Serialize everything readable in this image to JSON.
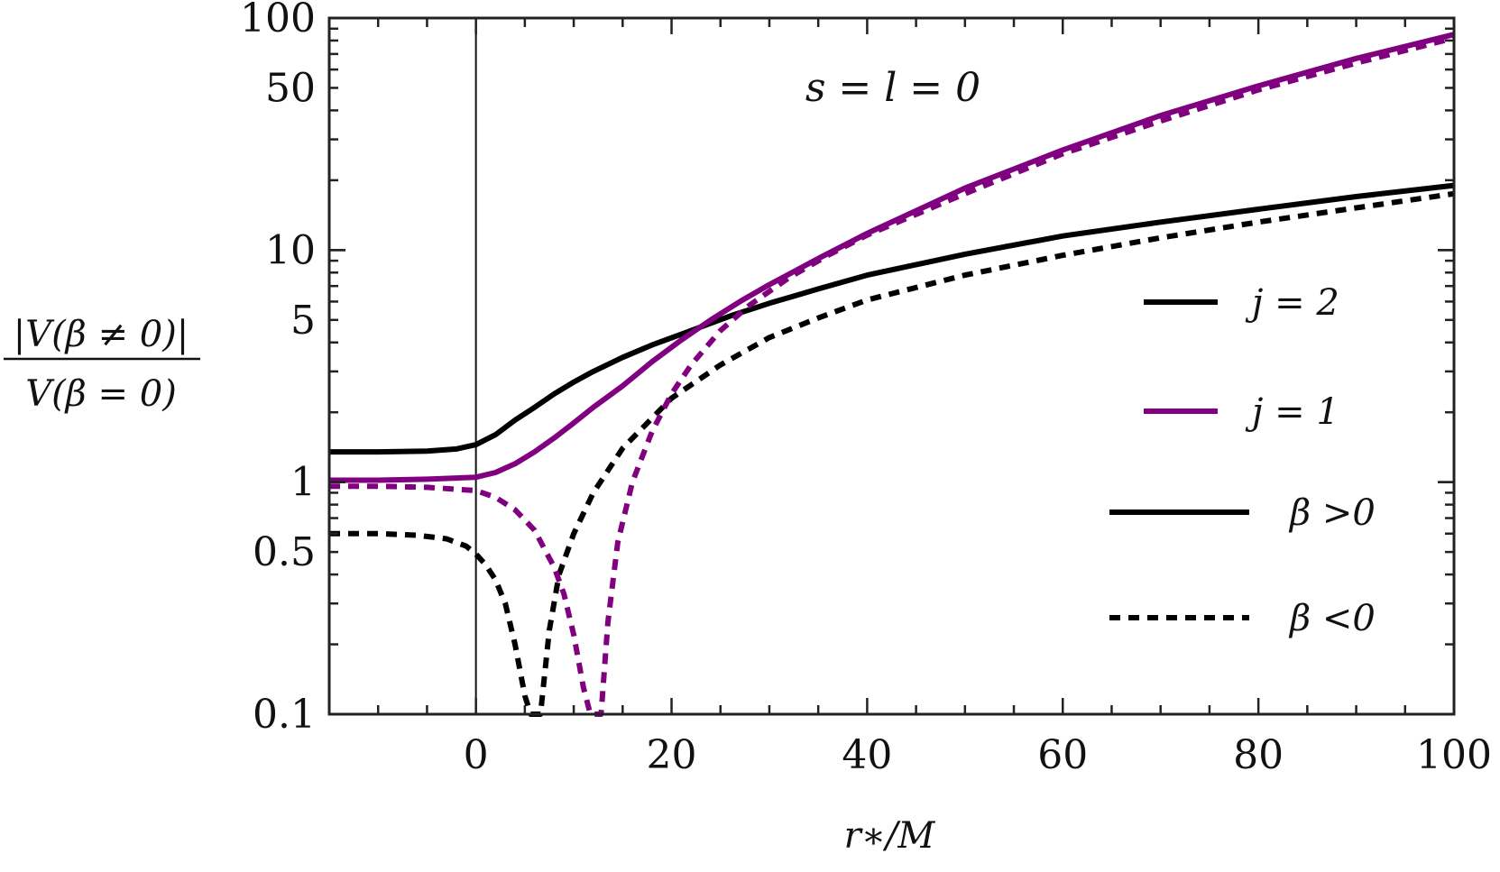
{
  "chart_data": {
    "type": "line",
    "title": "",
    "annotation": "s = l = 0",
    "xlabel": "r∗/M",
    "ylabel_numerator": "|V(β ≠ 0)|",
    "ylabel_denominator": "V(β = 0)",
    "xlim": [
      -15,
      100
    ],
    "ylim": [
      0.1,
      100
    ],
    "yscale": "log",
    "grid": false,
    "legend_position": "right",
    "x_ticks": [
      0,
      20,
      40,
      60,
      80,
      100
    ],
    "x_tick_labels": [
      "0",
      "20",
      "40",
      "60",
      "80",
      "100"
    ],
    "y_ticks": [
      0.1,
      0.5,
      1,
      5,
      10,
      50,
      100
    ],
    "y_tick_labels": [
      "0.1",
      "0.5",
      "1",
      "5",
      "10",
      "50",
      "100"
    ],
    "vertical_line_x": 0,
    "legend": [
      {
        "label": "j = 2",
        "color": "#000000",
        "style": "solid"
      },
      {
        "label": "j = 1",
        "color": "#800080",
        "style": "solid"
      },
      {
        "label": "β >0",
        "color": "#000000",
        "style": "solid"
      },
      {
        "label": "β <0",
        "color": "#000000",
        "style": "dashed"
      }
    ],
    "series": [
      {
        "color": "#000000",
        "style": "solid",
        "x": [
          -15,
          -10,
          -5,
          -2,
          0,
          2,
          4,
          6,
          8,
          10,
          12,
          15,
          18,
          22,
          26,
          30,
          35,
          40,
          50,
          60,
          70,
          80,
          90,
          100
        ],
        "y": [
          1.35,
          1.35,
          1.36,
          1.39,
          1.45,
          1.6,
          1.85,
          2.1,
          2.4,
          2.7,
          3.0,
          3.45,
          3.9,
          4.5,
          5.2,
          5.9,
          6.8,
          7.8,
          9.6,
          11.5,
          13.2,
          15.0,
          17.0,
          19.0
        ]
      },
      {
        "color": "#800080",
        "style": "solid",
        "x": [
          -15,
          -10,
          -5,
          0,
          2,
          4,
          6,
          8,
          10,
          12,
          15,
          18,
          21,
          24,
          27,
          30,
          35,
          40,
          50,
          60,
          70,
          80,
          90,
          100
        ],
        "y": [
          1.02,
          1.02,
          1.03,
          1.05,
          1.1,
          1.2,
          1.35,
          1.55,
          1.8,
          2.1,
          2.6,
          3.3,
          4.1,
          5.0,
          6.0,
          7.1,
          9.2,
          11.8,
          18.5,
          27,
          38,
          51,
          67,
          85
        ]
      },
      {
        "color": "#000000",
        "style": "dashed",
        "x": [
          -15,
          -10,
          -6,
          -3,
          -1,
          0,
          1,
          2,
          3,
          4,
          5,
          5.6,
          6.6,
          7.5,
          8.5,
          10,
          12,
          15,
          20,
          25,
          30,
          35,
          40,
          50,
          60,
          70,
          80,
          90,
          100
        ],
        "y": [
          0.6,
          0.6,
          0.59,
          0.57,
          0.53,
          0.49,
          0.44,
          0.38,
          0.3,
          0.2,
          0.12,
          0.1,
          0.1,
          0.23,
          0.4,
          0.6,
          0.9,
          1.4,
          2.3,
          3.2,
          4.2,
          5.1,
          6.1,
          7.8,
          9.5,
          11.3,
          13.2,
          15.2,
          17.5
        ]
      },
      {
        "color": "#800080",
        "style": "dashed",
        "x": [
          -15,
          -10,
          -5,
          0,
          2,
          4,
          6,
          8,
          9,
          10,
          11,
          11.7,
          12.8,
          13.5,
          14.5,
          16,
          18,
          20,
          22,
          25,
          28,
          32,
          36,
          40,
          50,
          60,
          70,
          80,
          90,
          100
        ],
        "y": [
          0.96,
          0.96,
          0.95,
          0.92,
          0.86,
          0.76,
          0.62,
          0.43,
          0.33,
          0.22,
          0.13,
          0.1,
          0.1,
          0.25,
          0.55,
          1.0,
          1.65,
          2.4,
          3.2,
          4.5,
          5.8,
          7.6,
          9.5,
          11.6,
          17.5,
          26,
          36,
          49,
          64,
          82
        ]
      }
    ]
  }
}
